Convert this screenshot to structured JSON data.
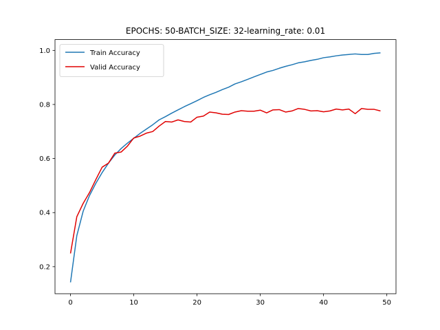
{
  "chart_data": {
    "type": "line",
    "title": "EPOCHS: 50-BATCH_SIZE: 32-learning_rate: 0.01",
    "xlabel": "",
    "ylabel": "",
    "xlim": [
      -2.45,
      51.45
    ],
    "ylim": [
      0.1,
      1.04
    ],
    "x_ticks": [
      0,
      10,
      20,
      30,
      40,
      50
    ],
    "y_ticks": [
      0.2,
      0.4,
      0.6,
      0.8,
      1.0
    ],
    "x_tick_labels": [
      "0",
      "10",
      "20",
      "30",
      "40",
      "50"
    ],
    "y_tick_labels": [
      "0.2",
      "0.4",
      "0.6",
      "0.8",
      "1.0"
    ],
    "grid": false,
    "legend_position": "upper-left",
    "x": [
      0,
      1,
      2,
      3,
      4,
      5,
      6,
      7,
      8,
      9,
      10,
      11,
      12,
      13,
      14,
      15,
      16,
      17,
      18,
      19,
      20,
      21,
      22,
      23,
      24,
      25,
      26,
      27,
      28,
      29,
      30,
      31,
      32,
      33,
      34,
      35,
      36,
      37,
      38,
      39,
      40,
      41,
      42,
      43,
      44,
      45,
      46,
      47,
      48,
      49
    ],
    "series": [
      {
        "name": "Train Accuracy",
        "color": "#1f77b4",
        "values": [
          0.142,
          0.315,
          0.405,
          0.463,
          0.508,
          0.548,
          0.583,
          0.613,
          0.637,
          0.657,
          0.675,
          0.693,
          0.709,
          0.725,
          0.743,
          0.755,
          0.768,
          0.78,
          0.792,
          0.803,
          0.814,
          0.826,
          0.836,
          0.845,
          0.855,
          0.864,
          0.876,
          0.884,
          0.893,
          0.902,
          0.911,
          0.92,
          0.926,
          0.934,
          0.941,
          0.947,
          0.954,
          0.958,
          0.963,
          0.967,
          0.973,
          0.976,
          0.98,
          0.983,
          0.985,
          0.987,
          0.985,
          0.985,
          0.989,
          0.991
        ]
      },
      {
        "name": "Valid Accuracy",
        "color": "#e00000",
        "values": [
          0.249,
          0.385,
          0.434,
          0.474,
          0.522,
          0.568,
          0.583,
          0.62,
          0.624,
          0.646,
          0.676,
          0.683,
          0.694,
          0.7,
          0.72,
          0.737,
          0.735,
          0.743,
          0.737,
          0.735,
          0.753,
          0.757,
          0.772,
          0.769,
          0.764,
          0.763,
          0.772,
          0.777,
          0.775,
          0.775,
          0.779,
          0.769,
          0.78,
          0.781,
          0.772,
          0.776,
          0.785,
          0.782,
          0.776,
          0.777,
          0.773,
          0.776,
          0.783,
          0.78,
          0.783,
          0.766,
          0.785,
          0.782,
          0.782,
          0.776
        ]
      }
    ]
  }
}
